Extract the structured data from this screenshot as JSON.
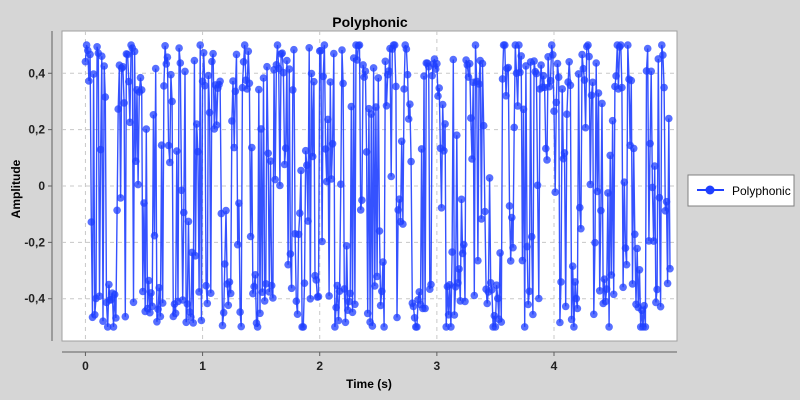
{
  "chart_data": {
    "type": "line",
    "title": "Polyphonic",
    "xlabel": "Time (s)",
    "ylabel": "Amplitude",
    "xlim": [
      -0.2,
      5.05
    ],
    "ylim": [
      -0.55,
      0.55
    ],
    "x_ticks": [
      0,
      1,
      2,
      3,
      4
    ],
    "x_tick_labels": [
      "0",
      "1",
      "2",
      "3",
      "4"
    ],
    "y_ticks": [
      -0.4,
      -0.2,
      0,
      0.2,
      0.4
    ],
    "y_tick_labels": [
      "-0,4",
      "-0,2",
      "0",
      "0,2",
      "0,4"
    ],
    "grid": true,
    "legend": "right",
    "series": [
      {
        "name": "Polyphonic",
        "color": "#1f3fff",
        "marker": "circle",
        "x_start": 0,
        "x_end": 4.99,
        "n_points": 500,
        "y_min": -0.5,
        "y_max": 0.5,
        "note_values": "dense oscillating signal between about -0.5 and 0.5"
      }
    ]
  }
}
